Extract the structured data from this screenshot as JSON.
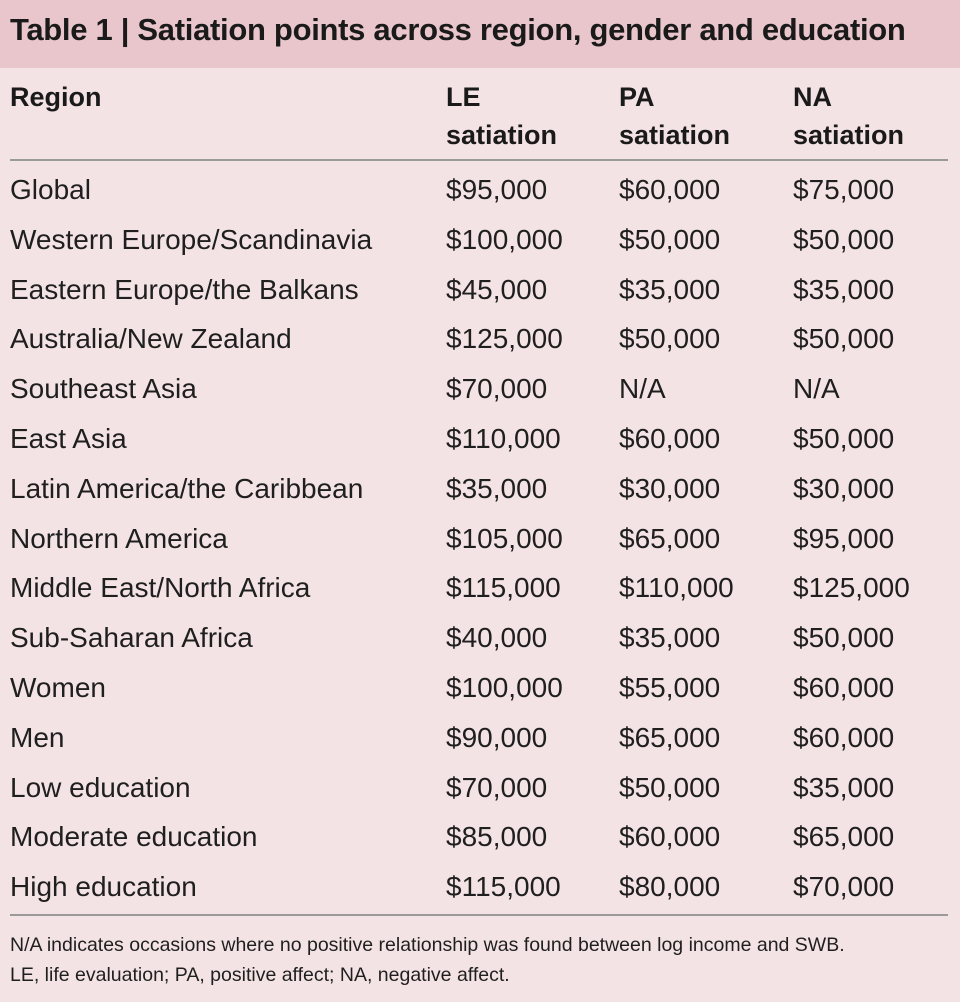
{
  "title": "Table 1 | Satiation points across region, gender and education",
  "headers": {
    "region": "Region",
    "le_line1": "LE",
    "le_line2": "satiation",
    "pa_line1": "PA",
    "pa_line2": "satiation",
    "na_line1": "NA",
    "na_line2": "satiation"
  },
  "rows": [
    {
      "region": "Global",
      "le": "$95,000",
      "pa": "$60,000",
      "na": "$75,000"
    },
    {
      "region": "Western Europe/Scandinavia",
      "le": "$100,000",
      "pa": "$50,000",
      "na": "$50,000"
    },
    {
      "region": "Eastern Europe/the Balkans",
      "le": "$45,000",
      "pa": "$35,000",
      "na": "$35,000"
    },
    {
      "region": "Australia/New Zealand",
      "le": "$125,000",
      "pa": "$50,000",
      "na": "$50,000"
    },
    {
      "region": "Southeast Asia",
      "le": "$70,000",
      "pa": "N/A",
      "na": "N/A"
    },
    {
      "region": "East Asia",
      "le": "$110,000",
      "pa": "$60,000",
      "na": "$50,000"
    },
    {
      "region": "Latin America/the Caribbean",
      "le": "$35,000",
      "pa": "$30,000",
      "na": "$30,000"
    },
    {
      "region": "Northern America",
      "le": "$105,000",
      "pa": "$65,000",
      "na": "$95,000"
    },
    {
      "region": "Middle East/North Africa",
      "le": "$115,000",
      "pa": "$110,000",
      "na": "$125,000"
    },
    {
      "region": "Sub-Saharan Africa",
      "le": "$40,000",
      "pa": "$35,000",
      "na": "$50,000"
    },
    {
      "region": "Women",
      "le": "$100,000",
      "pa": "$55,000",
      "na": "$60,000"
    },
    {
      "region": "Men",
      "le": "$90,000",
      "pa": "$65,000",
      "na": "$60,000"
    },
    {
      "region": "Low education",
      "le": "$70,000",
      "pa": "$50,000",
      "na": "$35,000"
    },
    {
      "region": "Moderate education",
      "le": "$85,000",
      "pa": "$60,000",
      "na": "$65,000"
    },
    {
      "region": "High education",
      "le": "$115,000",
      "pa": "$80,000",
      "na": "$70,000"
    }
  ],
  "footnotes": {
    "line1": "N/A indicates occasions where no positive relationship was found between log income and SWB.",
    "line2": "LE, life evaluation; PA, positive affect; NA, negative affect."
  }
}
